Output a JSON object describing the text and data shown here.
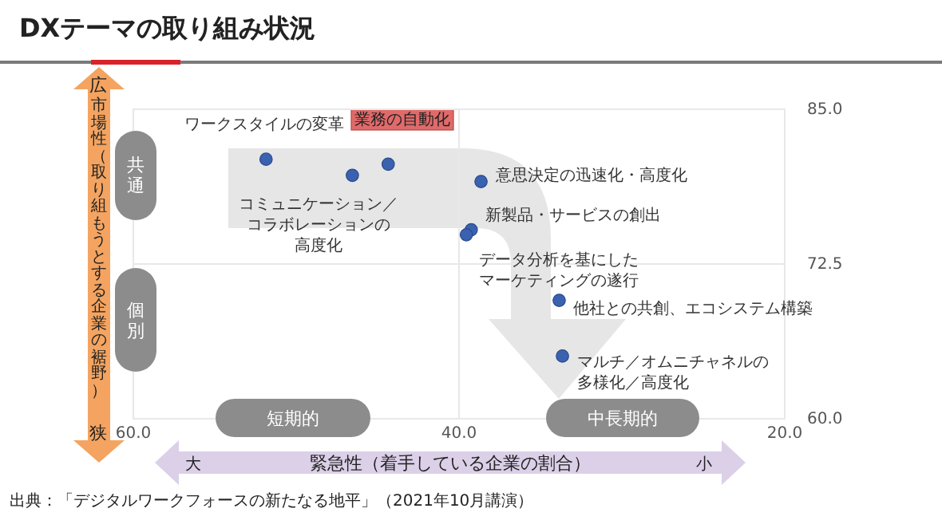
{
  "chart_data": {
    "type": "scatter",
    "title": "DXテーマの取り組み状況",
    "xlabel": "緊急性（着手している企業の割合）",
    "ylabel": "市場性（取り組もうとする企業の裾野）",
    "xlim": [
      60,
      20
    ],
    "xticks": [
      {
        "value": 60,
        "label": "60.0"
      },
      {
        "value": 40,
        "label": "40.0"
      },
      {
        "value": 20,
        "label": "20.0"
      }
    ],
    "ylim": [
      60,
      85
    ],
    "yticks": [
      {
        "value": 60,
        "label": "60.0"
      },
      {
        "value": 72.5,
        "label": "72.5"
      },
      {
        "value": 85,
        "label": "85.0"
      }
    ],
    "grid": true,
    "marker": "circle",
    "series": [
      {
        "color": "#3a62b0",
        "x": [
          51.8,
          46.5,
          38.6,
          39.2,
          39.5,
          33.8,
          33.6
        ],
        "values": [
          80.9,
          79.6,
          79.1,
          75.2,
          74.8,
          69.5,
          65.0
        ]
      },
      {
        "name": "業務の自動化",
        "color": "#3a62b0",
        "x": [
          44.3
        ],
        "values": [
          80.5
        ]
      }
    ],
    "annotations": [
      {
        "text": "ワークスタイルの変革",
        "x": 51.8,
        "y": 80.9
      },
      {
        "text": "コミュニケーション／コラボレーションの高度化",
        "x": 46.5,
        "y": 79.6
      },
      {
        "text": "意思決定の迅速化・高度化",
        "x": 38.6,
        "y": 79.1
      },
      {
        "text": "新製品・サービスの創出",
        "x": 39.2,
        "y": 75.2
      },
      {
        "text": "データ分析を基にしたマーケティングの遂行",
        "x": 39.5,
        "y": 74.8
      },
      {
        "text": "他社との共創、エコシステム構築",
        "x": 33.8,
        "y": 69.5
      },
      {
        "text": "マルチ／オムニチャネルの多様化／高度化",
        "x": 33.6,
        "y": 65.0
      },
      "共通",
      "個別",
      "短期的",
      "中長期的",
      "広",
      "狭",
      "大",
      "小",
      "出典：「デジタルワークフォースの新たなる地平」（2021年10月講演）"
    ]
  }
}
